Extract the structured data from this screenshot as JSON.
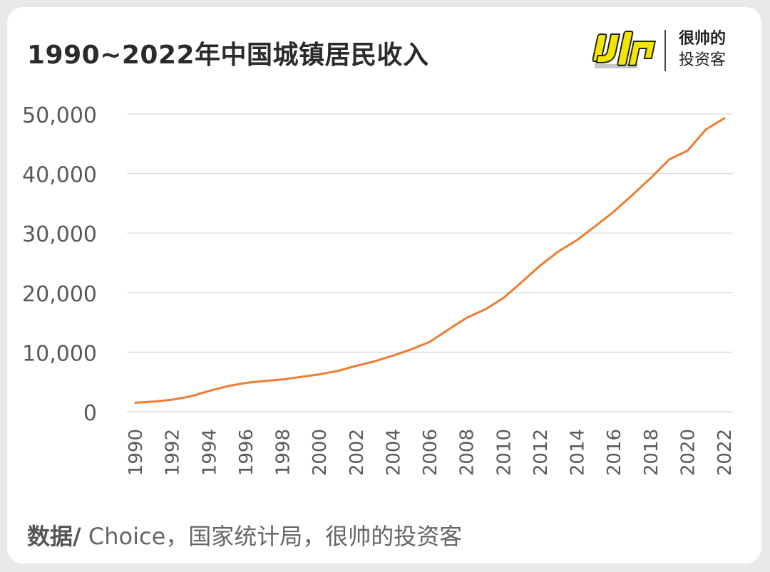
{
  "header": {
    "title": "1990~2022年中国城镇居民收入",
    "logo_name_line1": "很帅的",
    "logo_name_line2": "投资客"
  },
  "footer": {
    "source_lead": "数据/",
    "source_text": " Choice，国家统计局，很帅的投资客"
  },
  "colors": {
    "line": "#ed7d31",
    "grid": "#d9d9d9",
    "tick_text": "#595959",
    "logo_yellow": "#f2e600"
  },
  "chart_data": {
    "type": "line",
    "title": "1990~2022年中国城镇居民收入",
    "xlabel": "",
    "ylabel": "",
    "x": [
      1990,
      1991,
      1992,
      1993,
      1994,
      1995,
      1996,
      1997,
      1998,
      1999,
      2000,
      2001,
      2002,
      2003,
      2004,
      2005,
      2006,
      2007,
      2008,
      2009,
      2010,
      2011,
      2012,
      2013,
      2014,
      2015,
      2016,
      2017,
      2018,
      2019,
      2020,
      2021,
      2022
    ],
    "x_tick_labels": [
      "1990",
      "1992",
      "1994",
      "1996",
      "1998",
      "2000",
      "2002",
      "2004",
      "2006",
      "2008",
      "2010",
      "2012",
      "2014",
      "2016",
      "2018",
      "2020",
      "2022"
    ],
    "series": [
      {
        "values": [
          1510,
          1701,
          2027,
          2577,
          3496,
          4283,
          4839,
          5160,
          5425,
          5854,
          6280,
          6860,
          7703,
          8472,
          9422,
          10493,
          11759,
          13786,
          15781,
          17175,
          19109,
          21810,
          24565,
          26955,
          28844,
          31195,
          33616,
          36396,
          39251,
          42359,
          43834,
          47412,
          49283
        ]
      }
    ],
    "ylim": [
      0,
      50000
    ],
    "y_ticks": [
      0,
      10000,
      20000,
      30000,
      40000,
      50000
    ],
    "y_tick_labels": [
      "0",
      "10,000",
      "20,000",
      "30,000",
      "40,000",
      "50,000"
    ],
    "grid": true,
    "legend": "none"
  }
}
